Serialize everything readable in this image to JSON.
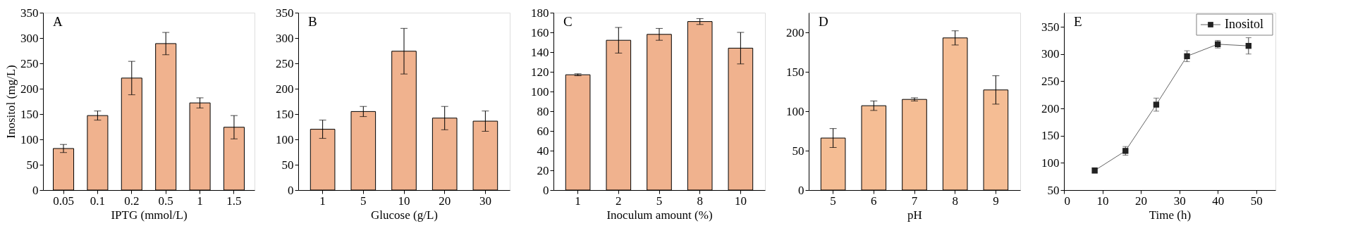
{
  "chart_data": [
    {
      "type": "bar",
      "annotations": [
        "A"
      ],
      "xlabel": "IPTG (mmol/L)",
      "ylabel": "Inositol (mg/L)",
      "categories": [
        "0.05",
        "0.1",
        "0.2",
        "0.5",
        "1",
        "1.5"
      ],
      "values": [
        82,
        147,
        221,
        289,
        172,
        124
      ],
      "errors": [
        8,
        9,
        33,
        22,
        10,
        23
      ],
      "color": "#f0b28e",
      "ylim": [
        0,
        350
      ],
      "yticks": [
        0,
        50,
        100,
        150,
        200,
        250,
        300,
        350
      ]
    },
    {
      "type": "bar",
      "annotations": [
        "B"
      ],
      "xlabel": "Glucose (g/L)",
      "categories": [
        "1",
        "5",
        "10",
        "20",
        "30"
      ],
      "values": [
        120,
        155,
        274,
        142,
        136
      ],
      "errors": [
        18,
        10,
        45,
        23,
        20
      ],
      "color": "#f0b28e",
      "ylim": [
        0,
        350
      ],
      "yticks": [
        0,
        50,
        100,
        150,
        200,
        250,
        300,
        350
      ]
    },
    {
      "type": "bar",
      "annotations": [
        "C"
      ],
      "xlabel": "Inoculum amount (%)",
      "categories": [
        "1",
        "2",
        "5",
        "8",
        "10"
      ],
      "values": [
        117,
        152,
        158,
        171,
        144
      ],
      "errors": [
        1,
        13,
        6,
        3,
        16
      ],
      "color": "#f0b28e",
      "ylim": [
        0,
        180
      ],
      "yticks": [
        0,
        20,
        40,
        60,
        80,
        100,
        120,
        140,
        160,
        180
      ]
    },
    {
      "type": "bar",
      "annotations": [
        "D"
      ],
      "xlabel": "pH",
      "categories": [
        "5",
        "6",
        "7",
        "8",
        "9"
      ],
      "values": [
        66,
        107,
        115,
        193,
        127
      ],
      "errors": [
        12,
        6,
        2,
        9,
        18
      ],
      "color": "#f5bd94",
      "ylim": [
        0,
        225
      ],
      "yticks": [
        0,
        50,
        100,
        150,
        200
      ]
    },
    {
      "type": "line",
      "annotations": [
        "E"
      ],
      "xlabel": "Time (h)",
      "marker": "square",
      "legend": "top right",
      "xlim": [
        0,
        55
      ],
      "xticks": [
        0,
        10,
        20,
        30,
        40,
        50
      ],
      "ylim": [
        50,
        376
      ],
      "yticks": [
        50,
        100,
        150,
        200,
        250,
        300,
        350
      ],
      "series": [
        {
          "name": "Inositol",
          "color": "#222222",
          "x": [
            8,
            16,
            24,
            32,
            40,
            48
          ],
          "values": [
            86,
            122,
            207,
            296,
            318,
            315
          ],
          "errors": [
            5,
            8,
            12,
            10,
            7,
            15
          ]
        }
      ]
    }
  ]
}
